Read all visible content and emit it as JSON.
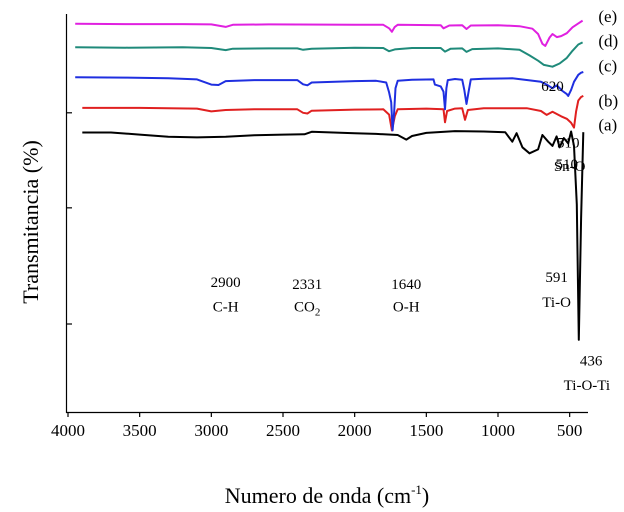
{
  "chart_data": {
    "type": "line",
    "xlabel": "Numero de onda (cm",
    "xlabel_sup": "-1",
    "xlabel_close": ")",
    "ylabel": "Transmitancia (%)",
    "xlim": [
      4000,
      400
    ],
    "xticks": [
      4000,
      3500,
      3000,
      2500,
      2000,
      1500,
      1000,
      500
    ],
    "ylim": [
      0,
      100
    ],
    "ytick_positions": [
      25,
      58,
      85
    ],
    "series": [
      {
        "name": "(a)",
        "color": "#000000",
        "points": [
          [
            3900,
            79.4
          ],
          [
            3700,
            79.4
          ],
          [
            3500,
            78.8
          ],
          [
            3300,
            78.2
          ],
          [
            3100,
            78.0
          ],
          [
            2900,
            78.2
          ],
          [
            2700,
            78.6
          ],
          [
            2500,
            78.8
          ],
          [
            2350,
            78.9
          ],
          [
            2300,
            79.6
          ],
          [
            2200,
            79.5
          ],
          [
            2000,
            79.2
          ],
          [
            1850,
            79.0
          ],
          [
            1700,
            78.7
          ],
          [
            1640,
            77.4
          ],
          [
            1600,
            78.4
          ],
          [
            1500,
            79.3
          ],
          [
            1300,
            79.8
          ],
          [
            1100,
            79.7
          ],
          [
            950,
            79.5
          ],
          [
            900,
            76.8
          ],
          [
            870,
            79.2
          ],
          [
            830,
            75.2
          ],
          [
            780,
            73.5
          ],
          [
            720,
            74.6
          ],
          [
            690,
            78.7
          ],
          [
            650,
            76.8
          ],
          [
            620,
            75.6
          ],
          [
            591,
            78.3
          ],
          [
            570,
            75.2
          ],
          [
            540,
            77.8
          ],
          [
            510,
            76.3
          ],
          [
            490,
            79.7
          ],
          [
            470,
            75.6
          ],
          [
            450,
            59.0
          ],
          [
            436,
            20.5
          ],
          [
            420,
            55.0
          ],
          [
            405,
            79.5
          ]
        ]
      },
      {
        "name": "(b)",
        "color": "#e02020",
        "points": [
          [
            3900,
            86.4
          ],
          [
            3500,
            86.4
          ],
          [
            3100,
            86.2
          ],
          [
            3000,
            85.4
          ],
          [
            2900,
            85.8
          ],
          [
            2700,
            86.0
          ],
          [
            2400,
            86.0
          ],
          [
            2360,
            85.0
          ],
          [
            2330,
            84.8
          ],
          [
            2300,
            85.6
          ],
          [
            2000,
            85.9
          ],
          [
            1800,
            86.0
          ],
          [
            1760,
            84.5
          ],
          [
            1740,
            80.0
          ],
          [
            1720,
            84.0
          ],
          [
            1700,
            86.0
          ],
          [
            1500,
            86.2
          ],
          [
            1380,
            86.0
          ],
          [
            1370,
            82.3
          ],
          [
            1355,
            85.5
          ],
          [
            1300,
            86.2
          ],
          [
            1250,
            86.3
          ],
          [
            1230,
            83.0
          ],
          [
            1210,
            85.8
          ],
          [
            1100,
            86.3
          ],
          [
            800,
            86.3
          ],
          [
            700,
            85.5
          ],
          [
            660,
            84.4
          ],
          [
            620,
            85.3
          ],
          [
            560,
            84.0
          ],
          [
            520,
            83.3
          ],
          [
            490,
            82.2
          ],
          [
            470,
            80.8
          ],
          [
            455,
            85.4
          ],
          [
            440,
            88.5
          ],
          [
            420,
            89.5
          ],
          [
            405,
            89.8
          ]
        ]
      },
      {
        "name": "(c)",
        "color": "#1f2fe0",
        "points": [
          [
            3950,
            95.1
          ],
          [
            3600,
            95.0
          ],
          [
            3300,
            94.8
          ],
          [
            3100,
            94.5
          ],
          [
            3000,
            93.0
          ],
          [
            2950,
            92.9
          ],
          [
            2900,
            94.0
          ],
          [
            2700,
            94.3
          ],
          [
            2400,
            94.3
          ],
          [
            2360,
            93.1
          ],
          [
            2330,
            92.8
          ],
          [
            2300,
            93.6
          ],
          [
            2000,
            94.0
          ],
          [
            1850,
            94.1
          ],
          [
            1780,
            93.6
          ],
          [
            1760,
            90.8
          ],
          [
            1745,
            88.0
          ],
          [
            1735,
            80.0
          ],
          [
            1725,
            85.0
          ],
          [
            1715,
            92.0
          ],
          [
            1700,
            94.1
          ],
          [
            1600,
            94.4
          ],
          [
            1450,
            94.5
          ],
          [
            1440,
            93.0
          ],
          [
            1400,
            92.5
          ],
          [
            1380,
            91.0
          ],
          [
            1370,
            86.0
          ],
          [
            1360,
            92.0
          ],
          [
            1350,
            94.3
          ],
          [
            1300,
            94.6
          ],
          [
            1250,
            94.4
          ],
          [
            1235,
            91.5
          ],
          [
            1220,
            87.5
          ],
          [
            1205,
            91.0
          ],
          [
            1190,
            94.5
          ],
          [
            1100,
            94.7
          ],
          [
            900,
            94.8
          ],
          [
            700,
            93.8
          ],
          [
            660,
            93.0
          ],
          [
            620,
            92.0
          ],
          [
            590,
            92.8
          ],
          [
            550,
            91.2
          ],
          [
            520,
            90.3
          ],
          [
            510,
            89.8
          ],
          [
            490,
            91.5
          ],
          [
            470,
            93.8
          ],
          [
            440,
            95.8
          ],
          [
            420,
            96.4
          ],
          [
            405,
            96.6
          ]
        ]
      },
      {
        "name": "(d)",
        "color": "#1f8a7a",
        "points": [
          [
            3950,
            103.6
          ],
          [
            3600,
            103.5
          ],
          [
            3200,
            103.6
          ],
          [
            3000,
            103.4
          ],
          [
            2900,
            102.8
          ],
          [
            2850,
            103.2
          ],
          [
            2600,
            103.3
          ],
          [
            2400,
            103.3
          ],
          [
            2360,
            102.9
          ],
          [
            2300,
            103.2
          ],
          [
            2000,
            103.5
          ],
          [
            1800,
            103.4
          ],
          [
            1760,
            102.5
          ],
          [
            1720,
            103.0
          ],
          [
            1600,
            103.4
          ],
          [
            1400,
            103.4
          ],
          [
            1370,
            102.4
          ],
          [
            1330,
            103.2
          ],
          [
            1250,
            103.3
          ],
          [
            1220,
            102.3
          ],
          [
            1180,
            103.1
          ],
          [
            1000,
            103.3
          ],
          [
            850,
            102.9
          ],
          [
            780,
            101.3
          ],
          [
            720,
            99.8
          ],
          [
            680,
            98.6
          ],
          [
            620,
            98.1
          ],
          [
            570,
            99.0
          ],
          [
            520,
            100.6
          ],
          [
            480,
            102.6
          ],
          [
            440,
            104.4
          ],
          [
            410,
            105.0
          ]
        ]
      },
      {
        "name": "(e)",
        "color": "#e020e0",
        "points": [
          [
            3950,
            110.3
          ],
          [
            3600,
            110.2
          ],
          [
            3200,
            110.2
          ],
          [
            3000,
            110.1
          ],
          [
            2900,
            109.4
          ],
          [
            2850,
            110.0
          ],
          [
            2600,
            110.1
          ],
          [
            2000,
            110.0
          ],
          [
            1800,
            110.0
          ],
          [
            1760,
            109.0
          ],
          [
            1740,
            108.0
          ],
          [
            1720,
            109.4
          ],
          [
            1700,
            110.0
          ],
          [
            1400,
            109.9
          ],
          [
            1380,
            109.0
          ],
          [
            1340,
            109.8
          ],
          [
            1250,
            109.9
          ],
          [
            1220,
            108.8
          ],
          [
            1190,
            109.8
          ],
          [
            1000,
            109.9
          ],
          [
            850,
            109.6
          ],
          [
            760,
            108.9
          ],
          [
            720,
            107.4
          ],
          [
            690,
            104.6
          ],
          [
            670,
            104.0
          ],
          [
            640,
            106.4
          ],
          [
            620,
            107.4
          ],
          [
            590,
            106.5
          ],
          [
            560,
            106.8
          ],
          [
            520,
            107.6
          ],
          [
            480,
            109.3
          ],
          [
            440,
            110.4
          ],
          [
            410,
            111.2
          ]
        ]
      }
    ],
    "annotations": [
      {
        "text": "2900",
        "x": 2900,
        "y": 35.5
      },
      {
        "text": "C-H",
        "x": 2900,
        "y": 28.5
      },
      {
        "text": "2331",
        "x": 2331,
        "y": 35.0
      },
      {
        "text": "CO",
        "sub": "2",
        "x": 2331,
        "y": 28.5
      },
      {
        "text": "1640",
        "x": 1640,
        "y": 35.0
      },
      {
        "text": "O-H",
        "x": 1640,
        "y": 28.5
      },
      {
        "text": "591",
        "x": 591,
        "y": 37.0
      },
      {
        "text": "Ti-O",
        "x": 591,
        "y": 29.8
      },
      {
        "text": "510",
        "x": 520,
        "y": 69.0
      },
      {
        "text": "620",
        "x": 620,
        "y": 91.2
      },
      {
        "text": "510",
        "x": 510,
        "y": 75.2
      },
      {
        "text": "Sn-O",
        "x": 500,
        "y": 68.5
      },
      {
        "text": "436",
        "x": 350,
        "y": 13.2
      },
      {
        "text": "Ti-O-Ti",
        "x": 380,
        "y": 6.3
      }
    ],
    "curve_labels": [
      {
        "text": "(a)",
        "x": 300,
        "y": 80.0
      },
      {
        "text": "(b)",
        "x": 300,
        "y": 86.8
      },
      {
        "text": "(c)",
        "x": 300,
        "y": 96.8
      },
      {
        "text": "(d)",
        "x": 300,
        "y": 103.8
      },
      {
        "text": "(e)",
        "x": 300,
        "y": 110.8
      }
    ]
  }
}
